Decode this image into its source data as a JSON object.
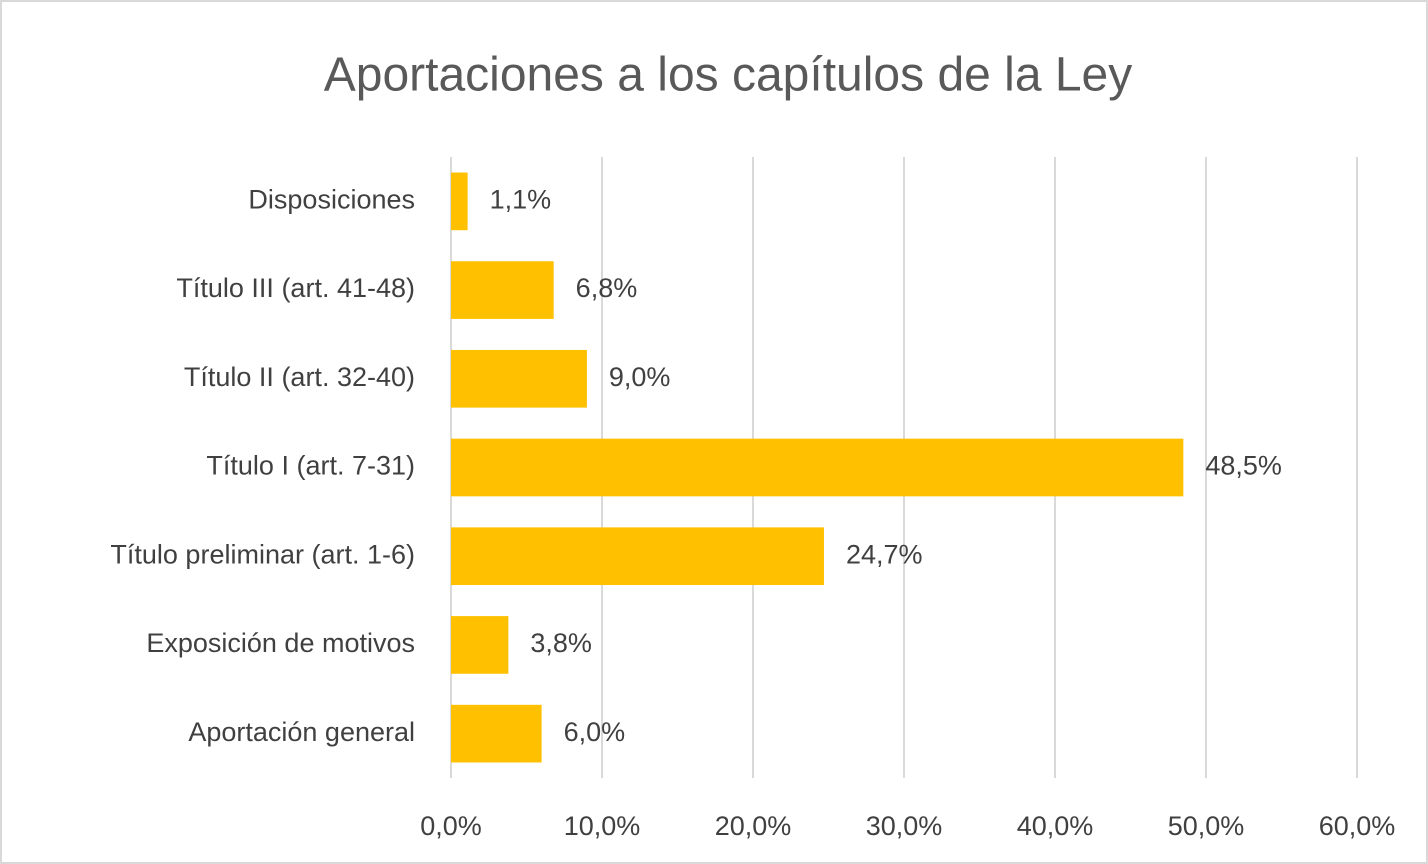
{
  "chart_data": {
    "type": "barh",
    "title": "Aportaciones a los capítulos de la Ley",
    "categories": [
      "Disposiciones",
      "Título III (art. 41-48)",
      "Título II (art. 32-40)",
      "Título I (art. 7-31)",
      "Título preliminar (art. 1-6)",
      "Exposición de motivos",
      "Aportación general"
    ],
    "values": [
      1.1,
      6.8,
      9.0,
      48.5,
      24.7,
      3.8,
      6.0
    ],
    "value_labels": [
      "1,1%",
      "6,8%",
      "9,0%",
      "48,5%",
      "24,7%",
      "3,8%",
      "6,0%"
    ],
    "color": "#ffc000",
    "xlim": [
      0,
      60
    ],
    "xticks": [
      {
        "value": 0,
        "label": "0,0%"
      },
      {
        "value": 10,
        "label": "10,0%"
      },
      {
        "value": 20,
        "label": "20,0%"
      },
      {
        "value": 30,
        "label": "30,0%"
      },
      {
        "value": 40,
        "label": "40,0%"
      },
      {
        "value": 50,
        "label": "50,0%"
      },
      {
        "value": 60,
        "label": "60,0%"
      }
    ],
    "grid": true
  }
}
